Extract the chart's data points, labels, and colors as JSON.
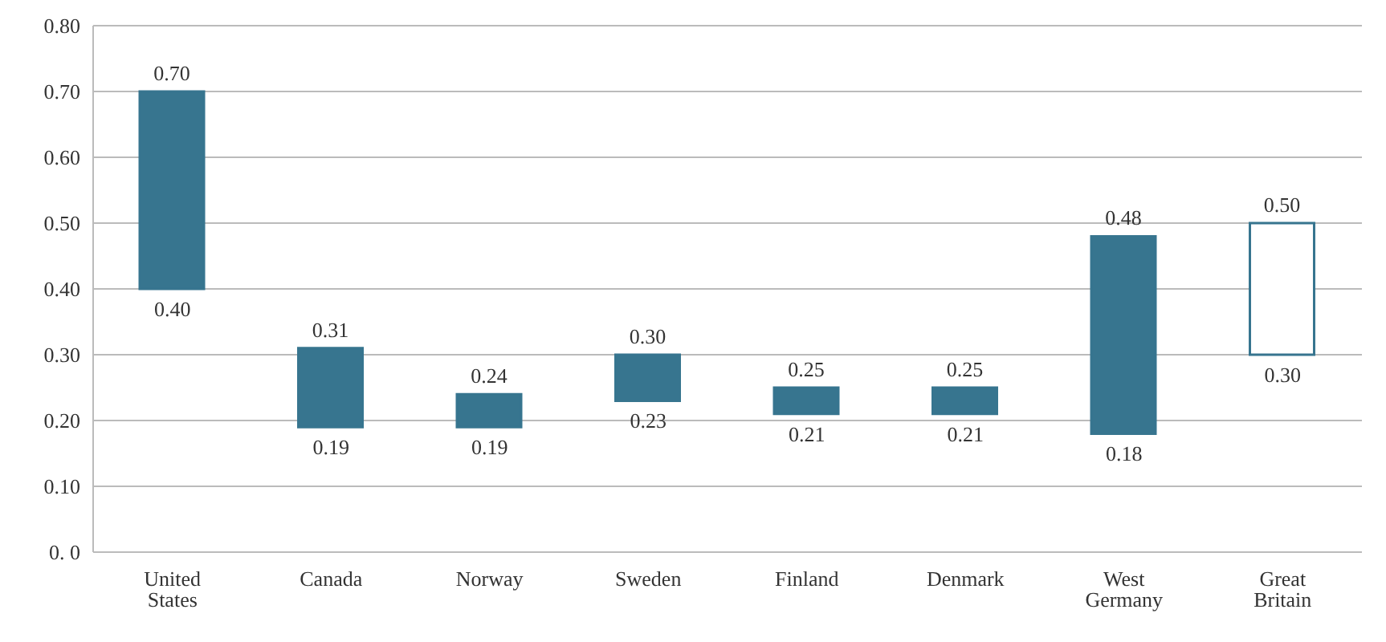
{
  "chart_data": {
    "type": "bar",
    "categories": [
      "United States",
      "Canada",
      "Norway",
      "Sweden",
      "Finland",
      "Denmark",
      "West Germany",
      "Great Britain"
    ],
    "base": [
      0.4,
      0.19,
      0.19,
      0.23,
      0.21,
      0.21,
      0.18,
      0.3
    ],
    "values": [
      0.3,
      0.12,
      0.05,
      0.07,
      0.04,
      0.04,
      0.3,
      0.2
    ],
    "value_labels": [
      "0.70",
      "0.31",
      "0.24",
      "0.30",
      "0.25",
      "0.25",
      "0.48",
      "0.50"
    ],
    "color": "#37758f",
    "colors": [
      "#37758f",
      "#37758f",
      "#37758f",
      "#37758f",
      "#37758f",
      "#37758f",
      "#37758f",
      "#ffffff"
    ],
    "annotations": [
      {
        "text": "0.40",
        "x": "United States",
        "y": 0.4
      },
      {
        "text": "0.19",
        "x": "Canada",
        "y": 0.19
      },
      {
        "text": "0.19",
        "x": "Norway",
        "y": 0.19
      },
      {
        "text": "0.23",
        "x": "Sweden",
        "y": 0.23
      },
      {
        "text": "0.21",
        "x": "Finland",
        "y": 0.21
      },
      {
        "text": "0.21",
        "x": "Denmark",
        "y": 0.21
      },
      {
        "text": "0.18",
        "x": "West Germany",
        "y": 0.18
      },
      {
        "text": "0.30",
        "x": "Great Britain",
        "y": 0.3
      }
    ],
    "ylim": [
      0,
      0.8
    ],
    "yticks": [
      {
        "value": 0,
        "label": "0. 0"
      },
      {
        "value": 0.1,
        "label": "0.10"
      },
      {
        "value": 0.2,
        "label": "0.20"
      },
      {
        "value": 0.3,
        "label": "0.30"
      },
      {
        "value": 0.4,
        "label": "0.40"
      },
      {
        "value": 0.5,
        "label": "0.50"
      },
      {
        "value": 0.6,
        "label": "0.60"
      },
      {
        "value": 0.7,
        "label": "0.70"
      },
      {
        "value": 0.8,
        "label": "0.80"
      }
    ],
    "grid": "y"
  }
}
